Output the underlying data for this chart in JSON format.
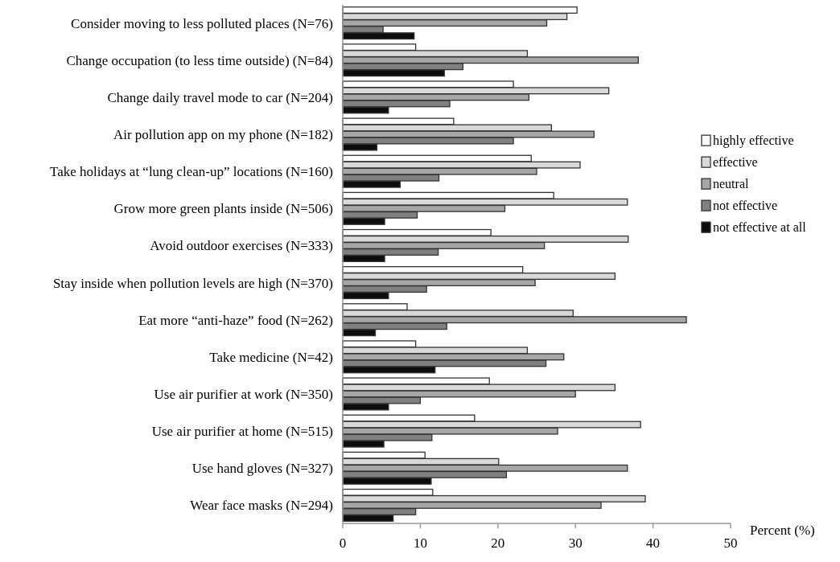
{
  "chart_data": {
    "type": "bar",
    "orientation": "horizontal",
    "xlabel": "Percent (%)",
    "categories": [
      "Consider moving to less polluted places (N=76)",
      "Change occupation (to less time outside) (N=84)",
      "Change daily travel mode to car (N=204)",
      "Air pollution app on my phone (N=182)",
      "Take holidays at “lung clean-up” locations (N=160)",
      "Grow more green plants inside (N=506)",
      "Avoid outdoor exercises (N=333)",
      "Stay inside when pollution levels are high (N=370)",
      "Eat more “anti-haze” food (N=262)",
      "Take medicine (N=42)",
      "Use air purifier at work (N=350)",
      "Use air purifier at home (N=515)",
      "Use hand gloves (N=327)",
      "Wear face masks (N=294)"
    ],
    "series": [
      {
        "name": "highly effective",
        "color": "#ffffff",
        "values": [
          30.2,
          9.4,
          22.0,
          14.3,
          24.3,
          27.2,
          19.1,
          23.2,
          8.3,
          9.4,
          18.9,
          17.0,
          10.6,
          11.6
        ]
      },
      {
        "name": "effective",
        "color": "#d9d9d9",
        "values": [
          28.9,
          23.8,
          34.3,
          26.9,
          30.6,
          36.7,
          36.8,
          35.1,
          29.7,
          23.8,
          35.1,
          38.4,
          20.1,
          39.0
        ]
      },
      {
        "name": "neutral",
        "color": "#a6a6a6",
        "values": [
          26.3,
          38.1,
          24.0,
          32.4,
          25.0,
          20.9,
          26.0,
          24.8,
          44.3,
          28.5,
          30.0,
          27.7,
          36.7,
          33.3
        ]
      },
      {
        "name": "not effective",
        "color": "#808080",
        "values": [
          5.2,
          15.5,
          13.8,
          22.0,
          12.4,
          9.6,
          12.3,
          10.8,
          13.4,
          26.2,
          10.0,
          11.5,
          21.1,
          9.4
        ]
      },
      {
        "name": "not effective at all",
        "color": "#0d0d0d",
        "values": [
          9.2,
          13.1,
          5.9,
          4.4,
          7.4,
          5.4,
          5.4,
          5.9,
          4.2,
          11.9,
          5.9,
          5.3,
          11.4,
          6.5
        ]
      }
    ],
    "xlim": [
      0,
      50
    ],
    "xticks": [
      0,
      10,
      20,
      30,
      40,
      50
    ],
    "grid": false,
    "legend": "right"
  }
}
